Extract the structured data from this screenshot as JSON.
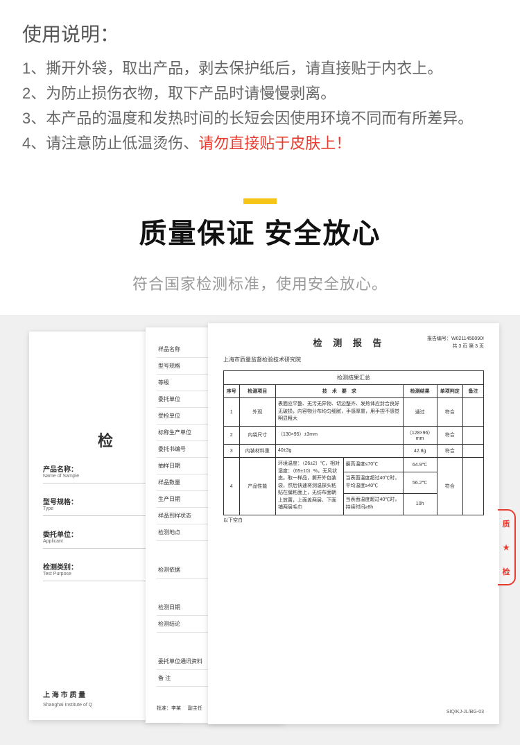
{
  "instructions": {
    "title": "使用说明：",
    "items": [
      "1、撕开外袋，取出产品，剥去保护纸后，请直接贴于内衣上。",
      "2、为防止损伤衣物，取下产品时请慢慢剥离。",
      "3、本产品的温度和发热时间的长短会因使用环境不同而有所差异。",
      "4、请注意防止低温烫伤、"
    ],
    "warning": "请勿直接贴于皮肤上！"
  },
  "quality": {
    "title": "质量保证  安全放心",
    "subtitle": "符合国家检测标准，使用安全放心。",
    "accent_color": "#f5c518"
  },
  "page1": {
    "big": "检",
    "rows": [
      {
        "cn": "产品名称：",
        "en": "Name of Sample"
      },
      {
        "cn": "型号规格：",
        "en": "Type"
      },
      {
        "cn": "委托单位：",
        "en": "Applicant"
      },
      {
        "cn": "检测类别：",
        "en": "Test Purpose"
      }
    ],
    "footer_cn": "上 海 市 质 量",
    "footer_en": "Shanghai Institute of Q"
  },
  "page2": {
    "rows": [
      "样品名称",
      "型号规格",
      "等级",
      "委托单位",
      "受检单位",
      "标称生产单位",
      "委托书编号",
      "抽样日期",
      "样品数量",
      "生产日期",
      "样品到样状态",
      "检测地点"
    ],
    "rows2": [
      "检测依据"
    ],
    "rows3": [
      "检测日期",
      "检测结论"
    ],
    "rows4": [
      "委托单位通讯资料",
      "备 注"
    ],
    "approver_label": "批准：李某",
    "deputy_label": "副主任"
  },
  "page3": {
    "title": "检 测 报 告",
    "org": "上海市质量监督检验技术研究院",
    "report_no_label": "报告编号：",
    "report_no": "W0211450090I",
    "page_info": "共 3 页 第 3 页",
    "table_caption": "检测结果汇总",
    "columns": [
      "序号",
      "检测项目",
      "技　术　要　求",
      "检测结果",
      "单项判定",
      "备注"
    ],
    "rows": [
      {
        "no": "1",
        "item": "外观",
        "req": "表面应平整、无污无异物、切边整齐、发热体应封合良好无破损，内容物分布均匀细腻，手感厚重，用手捏不感觉明显粗大",
        "result": "通过",
        "judge": "符合",
        "note": ""
      },
      {
        "no": "2",
        "item": "内袋尺寸",
        "req": "（130×95）±3mm",
        "result": "（128×96）mm",
        "judge": "符合",
        "note": ""
      },
      {
        "no": "3",
        "item": "内装材料重",
        "req": "40±3g",
        "result": "42.8g",
        "judge": "符合",
        "note": ""
      }
    ],
    "perf_row": {
      "no": "4",
      "item": "产品性能",
      "cond": "环境温度：（26±2）℃，相对湿度：（65±10）%，无风状态。取一样品，撕开外包装袋，然后快速将测温探头粘贴在膜粘面上，无纺布面朝上放置，上面盖两层、下面铺两层毛巾",
      "subs": [
        {
          "req": "最高温度≤70℃",
          "result": "64.9℃"
        },
        {
          "req": "当表面温度超过40℃时，平均温度≥40℃",
          "result": "56.2℃"
        },
        {
          "req": "当表面温度超过40℃时，持续时间≥8h",
          "result": "10h"
        }
      ],
      "judge": "符合"
    },
    "blank": "以下空白",
    "code": "SIQ/KJ-JL/BG-03"
  },
  "stamp": {
    "chars": [
      "质",
      "★",
      "检"
    ]
  }
}
